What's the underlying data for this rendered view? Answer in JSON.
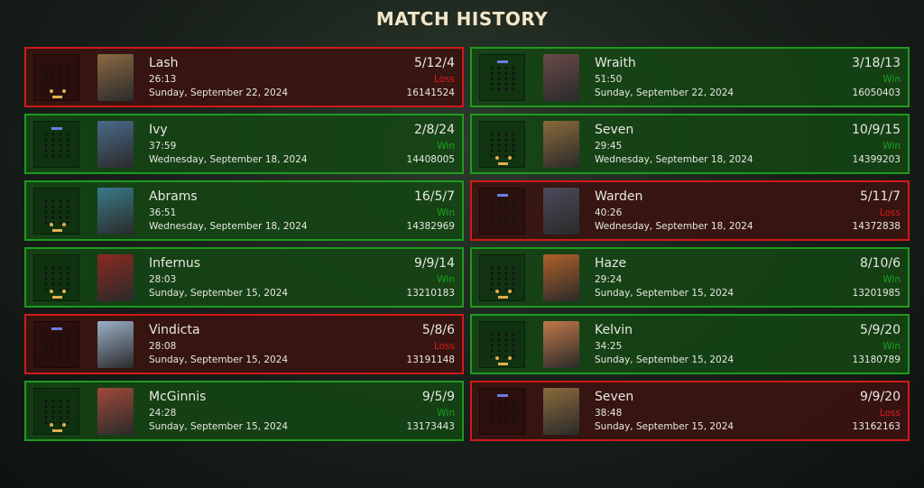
{
  "header": {
    "title": "MATCH HISTORY"
  },
  "colors": {
    "win_border": "#1f9a1f",
    "loss_border": "#d01a1a",
    "rank_gold": "#e0b050",
    "rank_blue": "#6a7fe0"
  },
  "matches": [
    {
      "hero": "Lash",
      "duration": "26:13",
      "date": "Sunday, September 22, 2024",
      "kda": "5/12/4",
      "result": "Loss",
      "match_id": "16141524",
      "rank_color": "#e0b050"
    },
    {
      "hero": "Wraith",
      "duration": "51:50",
      "date": "Sunday, September 22, 2024",
      "kda": "3/18/13",
      "result": "Win",
      "match_id": "16050403",
      "rank_color": "#6a7fe0"
    },
    {
      "hero": "Ivy",
      "duration": "37:59",
      "date": "Wednesday, September 18, 2024",
      "kda": "2/8/24",
      "result": "Win",
      "match_id": "14408005",
      "rank_color": "#6a7fe0"
    },
    {
      "hero": "Seven",
      "duration": "29:45",
      "date": "Wednesday, September 18, 2024",
      "kda": "10/9/15",
      "result": "Win",
      "match_id": "14399203",
      "rank_color": "#e0b050"
    },
    {
      "hero": "Abrams",
      "duration": "36:51",
      "date": "Wednesday, September 18, 2024",
      "kda": "16/5/7",
      "result": "Win",
      "match_id": "14382969",
      "rank_color": "#e0b050"
    },
    {
      "hero": "Warden",
      "duration": "40:26",
      "date": "Wednesday, September 18, 2024",
      "kda": "5/11/7",
      "result": "Loss",
      "match_id": "14372838",
      "rank_color": "#6a7fe0"
    },
    {
      "hero": "Infernus",
      "duration": "28:03",
      "date": "Sunday, September 15, 2024",
      "kda": "9/9/14",
      "result": "Win",
      "match_id": "13210183",
      "rank_color": "#e0b050"
    },
    {
      "hero": "Haze",
      "duration": "29:24",
      "date": "Sunday, September 15, 2024",
      "kda": "8/10/6",
      "result": "Win",
      "match_id": "13201985",
      "rank_color": "#e0b050"
    },
    {
      "hero": "Vindicta",
      "duration": "28:08",
      "date": "Sunday, September 15, 2024",
      "kda": "5/8/6",
      "result": "Loss",
      "match_id": "13191148",
      "rank_color": "#6a7fe0"
    },
    {
      "hero": "Kelvin",
      "duration": "34:25",
      "date": "Sunday, September 15, 2024",
      "kda": "5/9/20",
      "result": "Win",
      "match_id": "13180789",
      "rank_color": "#e0b050"
    },
    {
      "hero": "McGinnis",
      "duration": "24:28",
      "date": "Sunday, September 15, 2024",
      "kda": "9/5/9",
      "result": "Win",
      "match_id": "13173443",
      "rank_color": "#e0b050"
    },
    {
      "hero": "Seven",
      "duration": "38:48",
      "date": "Sunday, September 15, 2024",
      "kda": "9/9/20",
      "result": "Loss",
      "match_id": "13162163",
      "rank_color": "#6a7fe0"
    }
  ]
}
